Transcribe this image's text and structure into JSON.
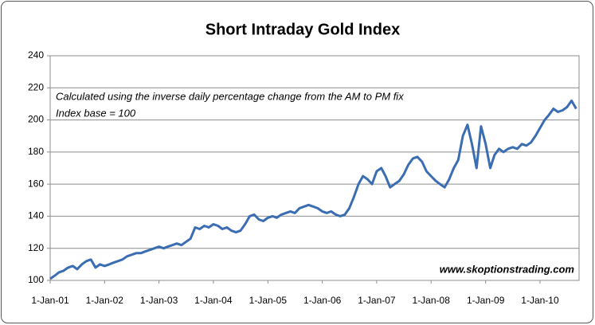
{
  "chart_data": {
    "type": "line",
    "title": "Short Intraday Gold Index",
    "annotations": [
      "Calculated using the inverse daily percentage change from the AM to PM fix",
      "Index base = 100",
      "www.skoptionstrading.com"
    ],
    "x": [
      "2001-01-01",
      "2001-02-01",
      "2001-03-01",
      "2001-04-01",
      "2001-05-01",
      "2001-06-01",
      "2001-07-01",
      "2001-08-01",
      "2001-09-01",
      "2001-10-01",
      "2001-11-01",
      "2001-12-01",
      "2002-01-01",
      "2002-02-01",
      "2002-03-01",
      "2002-04-01",
      "2002-05-01",
      "2002-06-01",
      "2002-07-01",
      "2002-08-01",
      "2002-09-01",
      "2002-10-01",
      "2002-11-01",
      "2002-12-01",
      "2003-01-01",
      "2003-02-01",
      "2003-03-01",
      "2003-04-01",
      "2003-05-01",
      "2003-06-01",
      "2003-07-01",
      "2003-08-01",
      "2003-09-01",
      "2003-10-01",
      "2003-11-01",
      "2003-12-01",
      "2004-01-01",
      "2004-02-01",
      "2004-03-01",
      "2004-04-01",
      "2004-05-01",
      "2004-06-01",
      "2004-07-01",
      "2004-08-01",
      "2004-09-01",
      "2004-10-01",
      "2004-11-01",
      "2004-12-01",
      "2005-01-01",
      "2005-02-01",
      "2005-03-01",
      "2005-04-01",
      "2005-05-01",
      "2005-06-01",
      "2005-07-01",
      "2005-08-01",
      "2005-09-01",
      "2005-10-01",
      "2005-11-01",
      "2005-12-01",
      "2006-01-01",
      "2006-02-01",
      "2006-03-01",
      "2006-04-01",
      "2006-05-01",
      "2006-06-01",
      "2006-07-01",
      "2006-08-01",
      "2006-09-01",
      "2006-10-01",
      "2006-11-01",
      "2006-12-01",
      "2007-01-01",
      "2007-02-01",
      "2007-03-01",
      "2007-04-01",
      "2007-05-01",
      "2007-06-01",
      "2007-07-01",
      "2007-08-01",
      "2007-09-01",
      "2007-10-01",
      "2007-11-01",
      "2007-12-01",
      "2008-01-01",
      "2008-02-01",
      "2008-03-01",
      "2008-04-01",
      "2008-05-01",
      "2008-06-01",
      "2008-07-01",
      "2008-08-01",
      "2008-09-01",
      "2008-10-01",
      "2008-11-01",
      "2008-12-01",
      "2009-01-01",
      "2009-02-01",
      "2009-03-01",
      "2009-04-01",
      "2009-05-01",
      "2009-06-01",
      "2009-07-01",
      "2009-08-01",
      "2009-09-01",
      "2009-10-01",
      "2009-11-01",
      "2009-12-01",
      "2010-01-01",
      "2010-02-01",
      "2010-03-01",
      "2010-04-01",
      "2010-05-01",
      "2010-06-01",
      "2010-07-01",
      "2010-08-01",
      "2010-09-01"
    ],
    "series": [
      {
        "color": "#3b6db3",
        "values": [
          101,
          103,
          105,
          106,
          108,
          109,
          107,
          110,
          112,
          113,
          108,
          110,
          109,
          110,
          111,
          112,
          113,
          115,
          116,
          117,
          117,
          118,
          119,
          120,
          121,
          120,
          121,
          122,
          123,
          122,
          124,
          126,
          133,
          132,
          134,
          133,
          135,
          134,
          132,
          133,
          131,
          130,
          131,
          135,
          140,
          141,
          138,
          137,
          139,
          140,
          139,
          141,
          142,
          143,
          142,
          145,
          146,
          147,
          146,
          145,
          143,
          142,
          143,
          141,
          140,
          141,
          145,
          152,
          160,
          165,
          163,
          160,
          168,
          170,
          165,
          158,
          160,
          162,
          166,
          172,
          176,
          177,
          174,
          168,
          165,
          162,
          160,
          158,
          163,
          170,
          175,
          190,
          197,
          185,
          170,
          196,
          185,
          170,
          178,
          182,
          180,
          182,
          183,
          182,
          185,
          184,
          186,
          190,
          195,
          200,
          203,
          207,
          205,
          206,
          208,
          212,
          207
        ]
      }
    ],
    "xlim": [
      "2001-01-01",
      "2010-09-20"
    ],
    "xticks": [
      {
        "value": "2001-01-01",
        "label": "1-Jan-01"
      },
      {
        "value": "2002-01-01",
        "label": "1-Jan-02"
      },
      {
        "value": "2003-01-01",
        "label": "1-Jan-03"
      },
      {
        "value": "2004-01-01",
        "label": "1-Jan-04"
      },
      {
        "value": "2005-01-01",
        "label": "1-Jan-05"
      },
      {
        "value": "2006-01-01",
        "label": "1-Jan-06"
      },
      {
        "value": "2007-01-01",
        "label": "1-Jan-07"
      },
      {
        "value": "2008-01-01",
        "label": "1-Jan-08"
      },
      {
        "value": "2009-01-01",
        "label": "1-Jan-09"
      },
      {
        "value": "2010-01-01",
        "label": "1-Jan-10"
      }
    ],
    "ylim": [
      100,
      240
    ],
    "yticks": [
      100,
      120,
      140,
      160,
      180,
      200,
      220,
      240
    ],
    "grid": true
  }
}
